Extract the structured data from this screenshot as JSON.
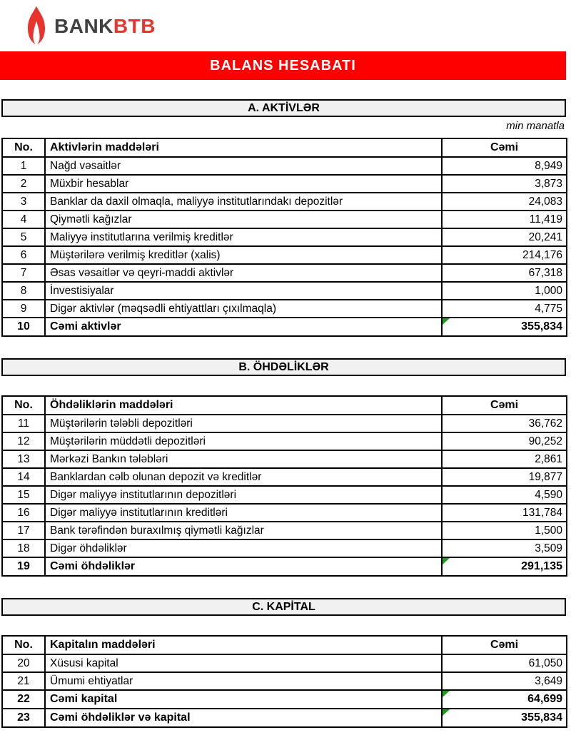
{
  "colors": {
    "banner_bg": "#fe0000",
    "banner_fg": "#ffffff",
    "brand_red": "#e8342c",
    "brand_dark": "#414042",
    "section_bg": "#f1f1f1",
    "table_border": "#000000",
    "marker_green": "#1e9c1e"
  },
  "brand": {
    "flame_icon": "flame-icon",
    "bank_word": "BANK",
    "btb_word": "BTB"
  },
  "banner": {
    "title": "BALANS HESABATI"
  },
  "sections": [
    {
      "id": "aktivler",
      "title": "A. AKTİVLƏR",
      "note": "min manatla",
      "columns": {
        "no": "No.",
        "item": "Aktivlərin maddələri",
        "total": "Cəmi"
      },
      "rows": [
        {
          "no": "1",
          "label": "Nağd vəsaitlər",
          "value": "8,949"
        },
        {
          "no": "2",
          "label": "Müxbir hesablar",
          "value": "3,873"
        },
        {
          "no": "3",
          "label": "Banklar da daxil olmaqla, maliyyə institutlarındakı depozitlər",
          "value": "24,083"
        },
        {
          "no": "4",
          "label": "Qiymətli kağızlar",
          "value": "11,419"
        },
        {
          "no": "5",
          "label": "Maliyyə institutlarına verilmiş kreditlər",
          "value": "20,241"
        },
        {
          "no": "6",
          "label": "Müştərilərə verilmiş kreditlər (xalis)",
          "value": "214,176"
        },
        {
          "no": "7",
          "label": "Əsas vəsaitlər və qeyri-maddi aktivlər",
          "value": "67,318"
        },
        {
          "no": "8",
          "label": "İnvestisiyalar",
          "value": "1,000"
        },
        {
          "no": "9",
          "label": "Digər aktivlər (məqsədli ehtiyattları çıxılmaqla)",
          "value": "4,775"
        },
        {
          "no": "10",
          "label": "Cəmi aktivlər",
          "value": "355,834",
          "total": true,
          "marker": true
        }
      ]
    },
    {
      "id": "ohdelikler",
      "title": "B. ÖHDƏLİKLƏR",
      "note": null,
      "columns": {
        "no": "No.",
        "item": "Öhdəliklərin maddələri",
        "total": "Cəmi"
      },
      "rows": [
        {
          "no": "11",
          "label": "Müştərilərin tələbli depozitləri",
          "value": "36,762"
        },
        {
          "no": "12",
          "label": "Müştərilərin müddətli depozitləri",
          "value": "90,252"
        },
        {
          "no": "13",
          "label": "Mərkəzi Bankın tələbləri",
          "value": "2,861"
        },
        {
          "no": "14",
          "label": "Banklardan cəlb olunan depozit və kreditlər",
          "value": "19,877"
        },
        {
          "no": "15",
          "label": "Digər maliyyə institutlarının depozitləri",
          "value": "4,590"
        },
        {
          "no": "16",
          "label": "Digər maliyyə institutlarının kreditləri",
          "value": "131,784"
        },
        {
          "no": "17",
          "label": "Bank tərəfindən buraxılmış qiymətli kağızlar",
          "value": "1,500"
        },
        {
          "no": "18",
          "label": "Digər öhdəliklər",
          "value": "3,509"
        },
        {
          "no": "19",
          "label": "Cəmi öhdəliklər",
          "value": "291,135",
          "total": true,
          "marker": true
        }
      ]
    },
    {
      "id": "kapital",
      "title": "C. KAPİTAL",
      "note": null,
      "columns": {
        "no": "No.",
        "item": "Kapitalın maddələri",
        "total": "Cəmi"
      },
      "rows": [
        {
          "no": "20",
          "label": "Xüsusi kapital",
          "value": "61,050"
        },
        {
          "no": "21",
          "label": "Ümumi ehtiyatlar",
          "value": "3,649"
        },
        {
          "no": "22",
          "label": "Cəmi kapital",
          "value": "64,699",
          "total": true,
          "marker": true
        },
        {
          "no": "23",
          "label": "Cəmi öhdəliklər və kapital",
          "value": "355,834",
          "total": true,
          "marker": true
        }
      ]
    }
  ]
}
